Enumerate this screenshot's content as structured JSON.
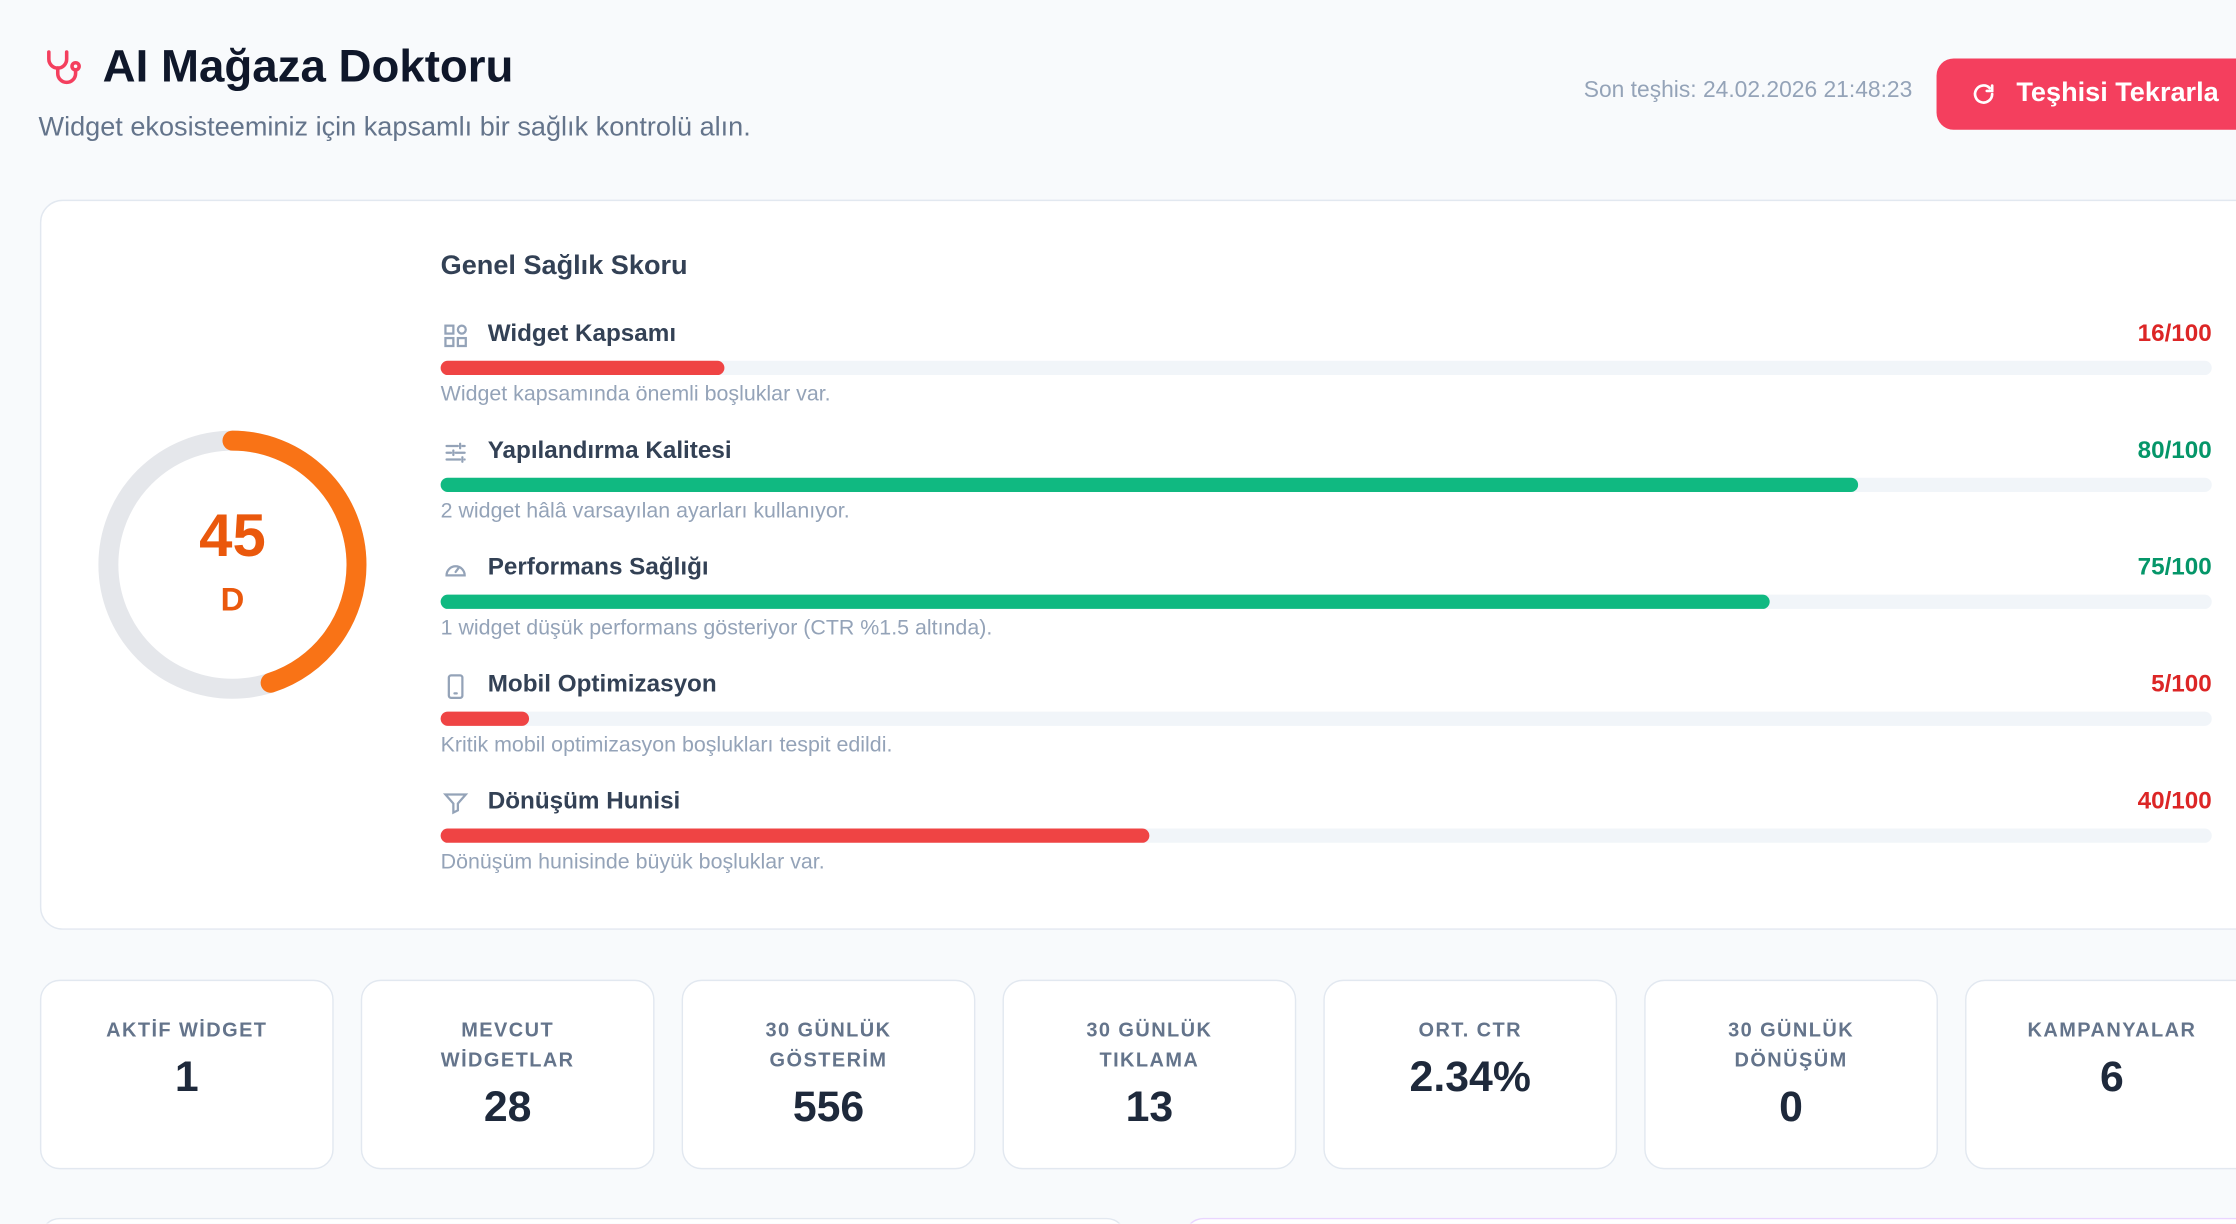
{
  "header": {
    "title": "AI Mağaza Doktoru",
    "subtitle": "Widget ekosisteeminiz için kapsamlı bir sağlık kontrolü alın.",
    "last_diagnosis": "Son teşhis: 24.02.2026 21:48:23",
    "button": "Teşhisi Tekrarla"
  },
  "score": {
    "title": "Genel Sağlık Skoru",
    "value": 45,
    "grade": "D",
    "color": "#f97316",
    "metrics": [
      {
        "name": "Widget Kapsamı",
        "value": 16,
        "label": "16/100",
        "description": "Widget kapsamında önemli boşluklar var.",
        "color": "#ef4444",
        "text_color": "#dc2626"
      },
      {
        "name": "Yapılandırma Kalitesi",
        "value": 80,
        "label": "80/100",
        "description": "2 widget hâlâ varsayılan ayarları kullanıyor.",
        "color": "#10b981",
        "text_color": "#059669"
      },
      {
        "name": "Performans Sağlığı",
        "value": 75,
        "label": "75/100",
        "description": "1 widget düşük performans gösteriyor (CTR %1.5 altında).",
        "color": "#10b981",
        "text_color": "#059669"
      },
      {
        "name": "Mobil Optimizasyon",
        "value": 5,
        "label": "5/100",
        "description": "Kritik mobil optimizasyon boşlukları tespit edildi.",
        "color": "#ef4444",
        "text_color": "#dc2626"
      },
      {
        "name": "Dönüşüm Hunisi",
        "value": 40,
        "label": "40/100",
        "description": "Dönüşüm hunisinde büyük boşluklar var.",
        "color": "#ef4444",
        "text_color": "#dc2626"
      }
    ]
  },
  "stats": [
    {
      "label": "AKTİF WİDGET",
      "value": "1"
    },
    {
      "label": "MEVCUT WİDGETLAR",
      "value": "28"
    },
    {
      "label": "30 GÜNLÜK GÖSTERİM",
      "value": "556"
    },
    {
      "label": "30 GÜNLÜK TIKLAMA",
      "value": "13"
    },
    {
      "label": "ORT. CTR",
      "value": "2.34%"
    },
    {
      "label": "30 GÜNLÜK DÖNÜŞÜM",
      "value": "0"
    },
    {
      "label": "KAMPANYALAR",
      "value": "6"
    }
  ]
}
